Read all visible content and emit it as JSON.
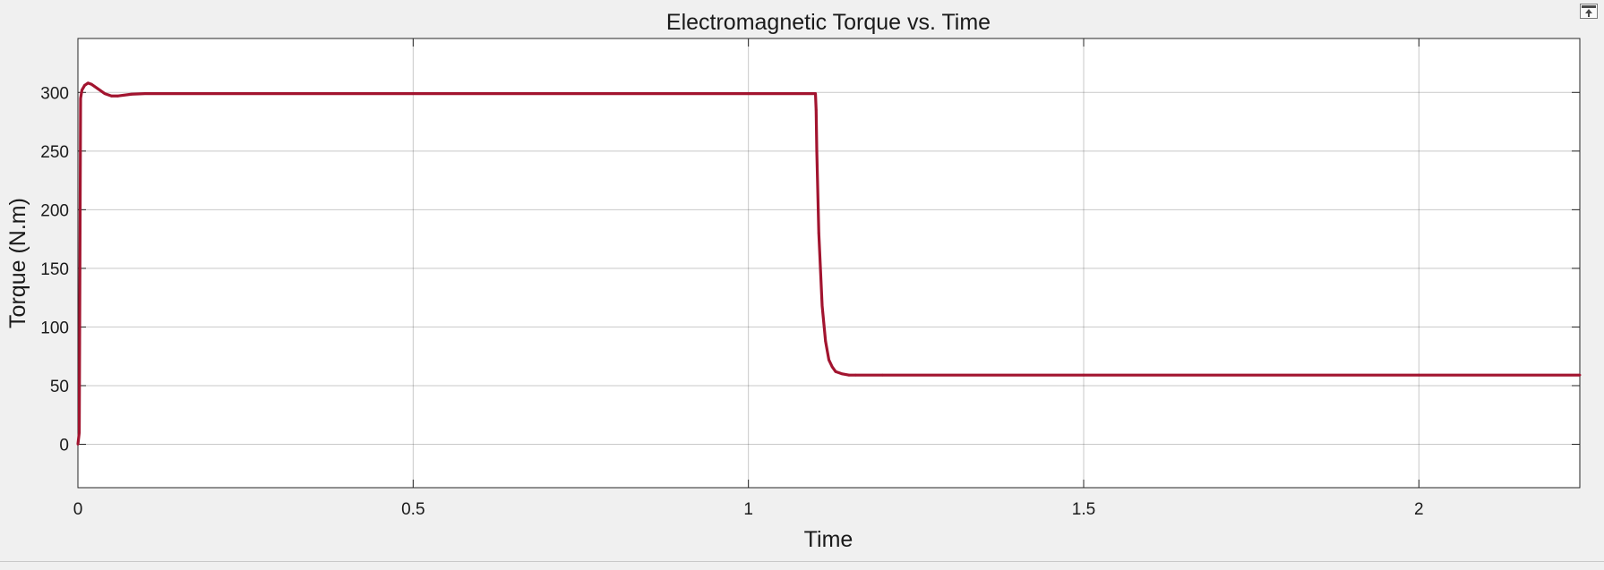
{
  "window": {
    "undock_icon": "undock-icon"
  },
  "colors": {
    "background": "#f0f0f0",
    "axes_background": "#ffffff",
    "grid": "#262626",
    "line": "#a2142f"
  },
  "chart_data": {
    "type": "line",
    "title": "Electromagnetic Torque vs. Time",
    "xlabel": "Time",
    "ylabel": "Torque (N.m)",
    "xlim": [
      0,
      2.24
    ],
    "ylim": [
      -37,
      346
    ],
    "x_ticks": [
      0,
      0.5,
      1,
      1.5,
      2
    ],
    "x_tick_labels": [
      "0",
      "0.5",
      "1",
      "1.5",
      "2"
    ],
    "y_ticks": [
      0,
      50,
      100,
      150,
      200,
      250,
      300
    ],
    "y_tick_labels": [
      "0",
      "50",
      "100",
      "150",
      "200",
      "250",
      "300"
    ],
    "grid": true,
    "legend": "none",
    "series": [
      {
        "x": [
          0,
          0.002,
          0.004,
          0.006,
          0.01,
          0.015,
          0.02,
          0.03,
          0.04,
          0.05,
          0.06,
          0.08,
          0.1,
          0.5,
          1.0,
          1.1,
          1.101,
          1.102,
          1.105,
          1.11,
          1.115,
          1.12,
          1.125,
          1.13,
          1.14,
          1.15,
          1.16,
          1.2,
          1.5,
          2.0,
          2.24
        ],
        "y": [
          0,
          10,
          295,
          302,
          306,
          308,
          307,
          303,
          299,
          297,
          297,
          298.5,
          299,
          299,
          299,
          299,
          285,
          250,
          180,
          118,
          88,
          72,
          66,
          62,
          60,
          59,
          59,
          59,
          59,
          59,
          59
        ]
      }
    ]
  }
}
